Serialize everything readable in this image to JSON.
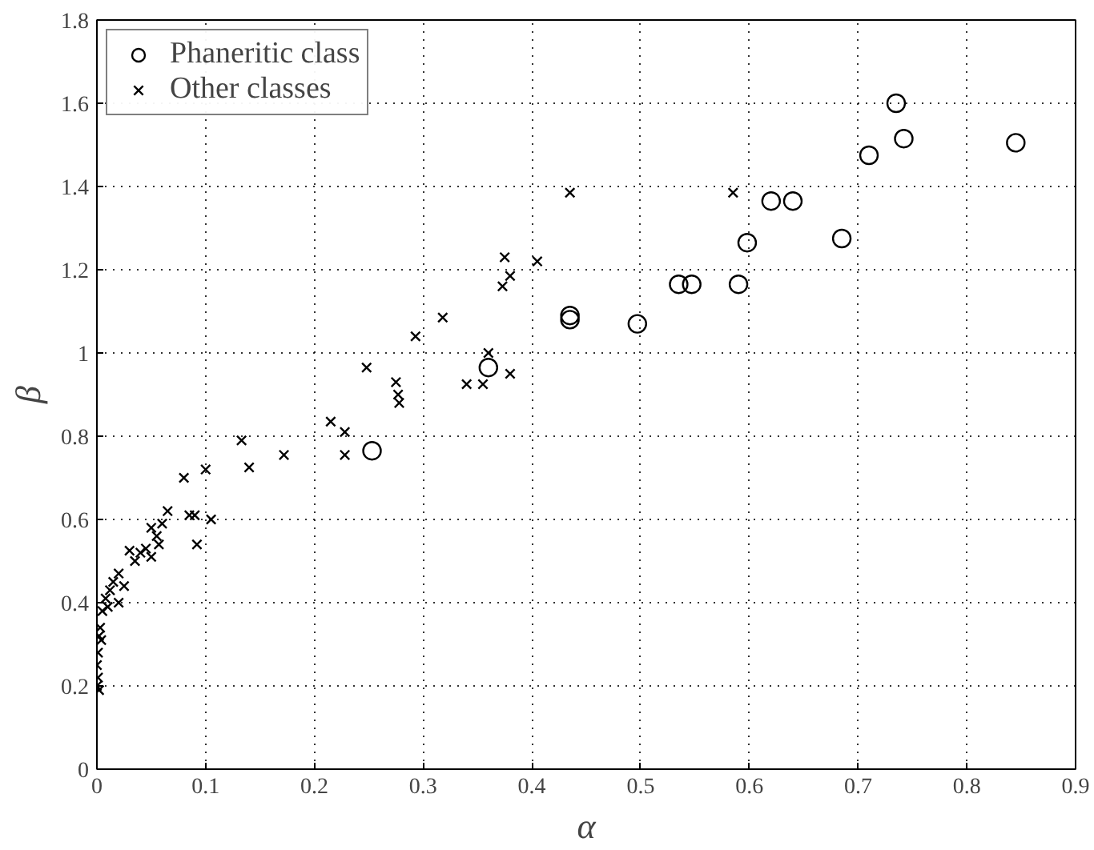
{
  "chart_data": {
    "type": "scatter",
    "xlabel": "α",
    "ylabel": "β",
    "xlim": [
      0,
      0.9
    ],
    "ylim": [
      0,
      1.8
    ],
    "xticks": [
      0,
      0.1,
      0.2,
      0.3,
      0.4,
      0.5,
      0.6,
      0.7,
      0.8,
      0.9
    ],
    "yticks": [
      0,
      0.2,
      0.4,
      0.6,
      0.8,
      1,
      1.2,
      1.4,
      1.6,
      1.8
    ],
    "grid": true,
    "legend": "top left",
    "series": [
      {
        "name": "Phaneritic class",
        "color": "#000000",
        "marker": "circle",
        "x": [
          0.253,
          0.36,
          0.435,
          0.435,
          0.497,
          0.535,
          0.547,
          0.59,
          0.598,
          0.62,
          0.64,
          0.685,
          0.71,
          0.735,
          0.742,
          0.845
        ],
        "values": [
          0.765,
          0.965,
          1.09,
          1.08,
          1.07,
          1.165,
          1.165,
          1.165,
          1.265,
          1.365,
          1.365,
          1.275,
          1.475,
          1.6,
          1.515,
          1.505
        ]
      },
      {
        "name": "Other classes",
        "color": "#000000",
        "marker": "cross",
        "x": [
          0.435,
          0.585,
          0.375,
          0.405,
          0.38,
          0.373,
          0.318,
          0.293,
          0.248,
          0.36,
          0.38,
          0.34,
          0.355,
          0.275,
          0.277,
          0.278,
          0.215,
          0.228,
          0.228,
          0.133,
          0.14,
          0.172,
          0.1,
          0.08,
          0.105,
          0.09,
          0.085,
          0.092,
          0.065,
          0.06,
          0.05,
          0.055,
          0.045,
          0.05,
          0.03,
          0.04,
          0.057,
          0.035,
          0.02,
          0.025,
          0.015,
          0.012,
          0.008,
          0.01,
          0.005,
          0.02,
          0.003,
          0.002,
          0.004,
          0.001,
          0.0,
          0.001,
          0.0,
          0.002
        ],
        "values": [
          1.385,
          1.385,
          1.23,
          1.22,
          1.185,
          1.16,
          1.085,
          1.04,
          0.965,
          1.0,
          0.95,
          0.925,
          0.925,
          0.93,
          0.9,
          0.88,
          0.835,
          0.81,
          0.755,
          0.79,
          0.725,
          0.755,
          0.72,
          0.7,
          0.6,
          0.61,
          0.61,
          0.54,
          0.62,
          0.59,
          0.58,
          0.56,
          0.53,
          0.51,
          0.525,
          0.52,
          0.54,
          0.5,
          0.47,
          0.44,
          0.45,
          0.43,
          0.41,
          0.39,
          0.38,
          0.4,
          0.34,
          0.32,
          0.31,
          0.28,
          0.25,
          0.22,
          0.2,
          0.19
        ]
      }
    ]
  }
}
